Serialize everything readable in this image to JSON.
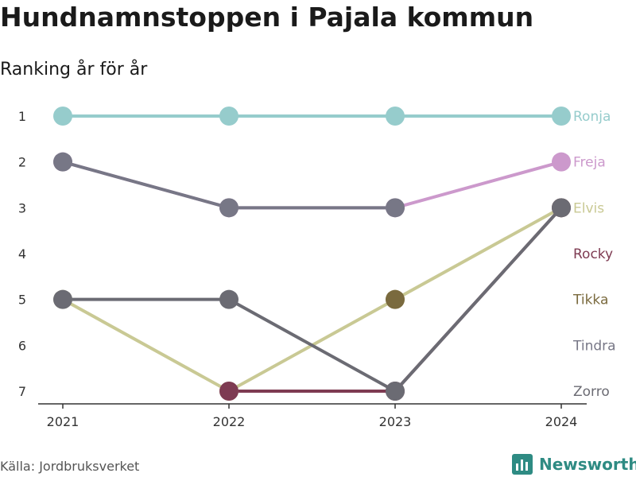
{
  "header": {
    "title": "Hundnamnstoppen i Pajala kommun",
    "subtitle": "Ranking år för år"
  },
  "footer": {
    "source": "Källa: Jordbruksverket",
    "brand": "Newsworthy"
  },
  "colors": {
    "axis": "#333333",
    "brand": "#2e8b83"
  },
  "chart_data": {
    "type": "line",
    "title": "Hundnamnstoppen i Pajala kommun",
    "subtitle": "Ranking år för år",
    "x": [
      "2021",
      "2022",
      "2023",
      "2024"
    ],
    "yticks": [
      1,
      2,
      3,
      4,
      5,
      6,
      7
    ],
    "ylim": [
      1,
      7
    ],
    "y_inverted": true,
    "grid": false,
    "legend": "end-labels-right",
    "series": [
      {
        "name": "Ronja",
        "color": "#96cccc",
        "values": [
          1,
          1,
          1,
          1
        ]
      },
      {
        "name": "Freja",
        "color": "#cc99cc",
        "values": [
          2,
          3,
          3,
          2
        ]
      },
      {
        "name": "Elvis",
        "color": "#c9c994",
        "values": [
          5,
          7,
          5,
          3
        ]
      },
      {
        "name": "Rocky",
        "color": "#7e3b52",
        "values": [
          null,
          7,
          7,
          3
        ]
      },
      {
        "name": "Tikka",
        "color": "#7a6a3e",
        "values": [
          null,
          null,
          5,
          null
        ]
      },
      {
        "name": "Tindra",
        "color": "#777786",
        "values": [
          2,
          3,
          3,
          null
        ]
      },
      {
        "name": "Zorro",
        "color": "#6b6b73",
        "values": [
          5,
          5,
          7,
          3
        ]
      }
    ]
  }
}
